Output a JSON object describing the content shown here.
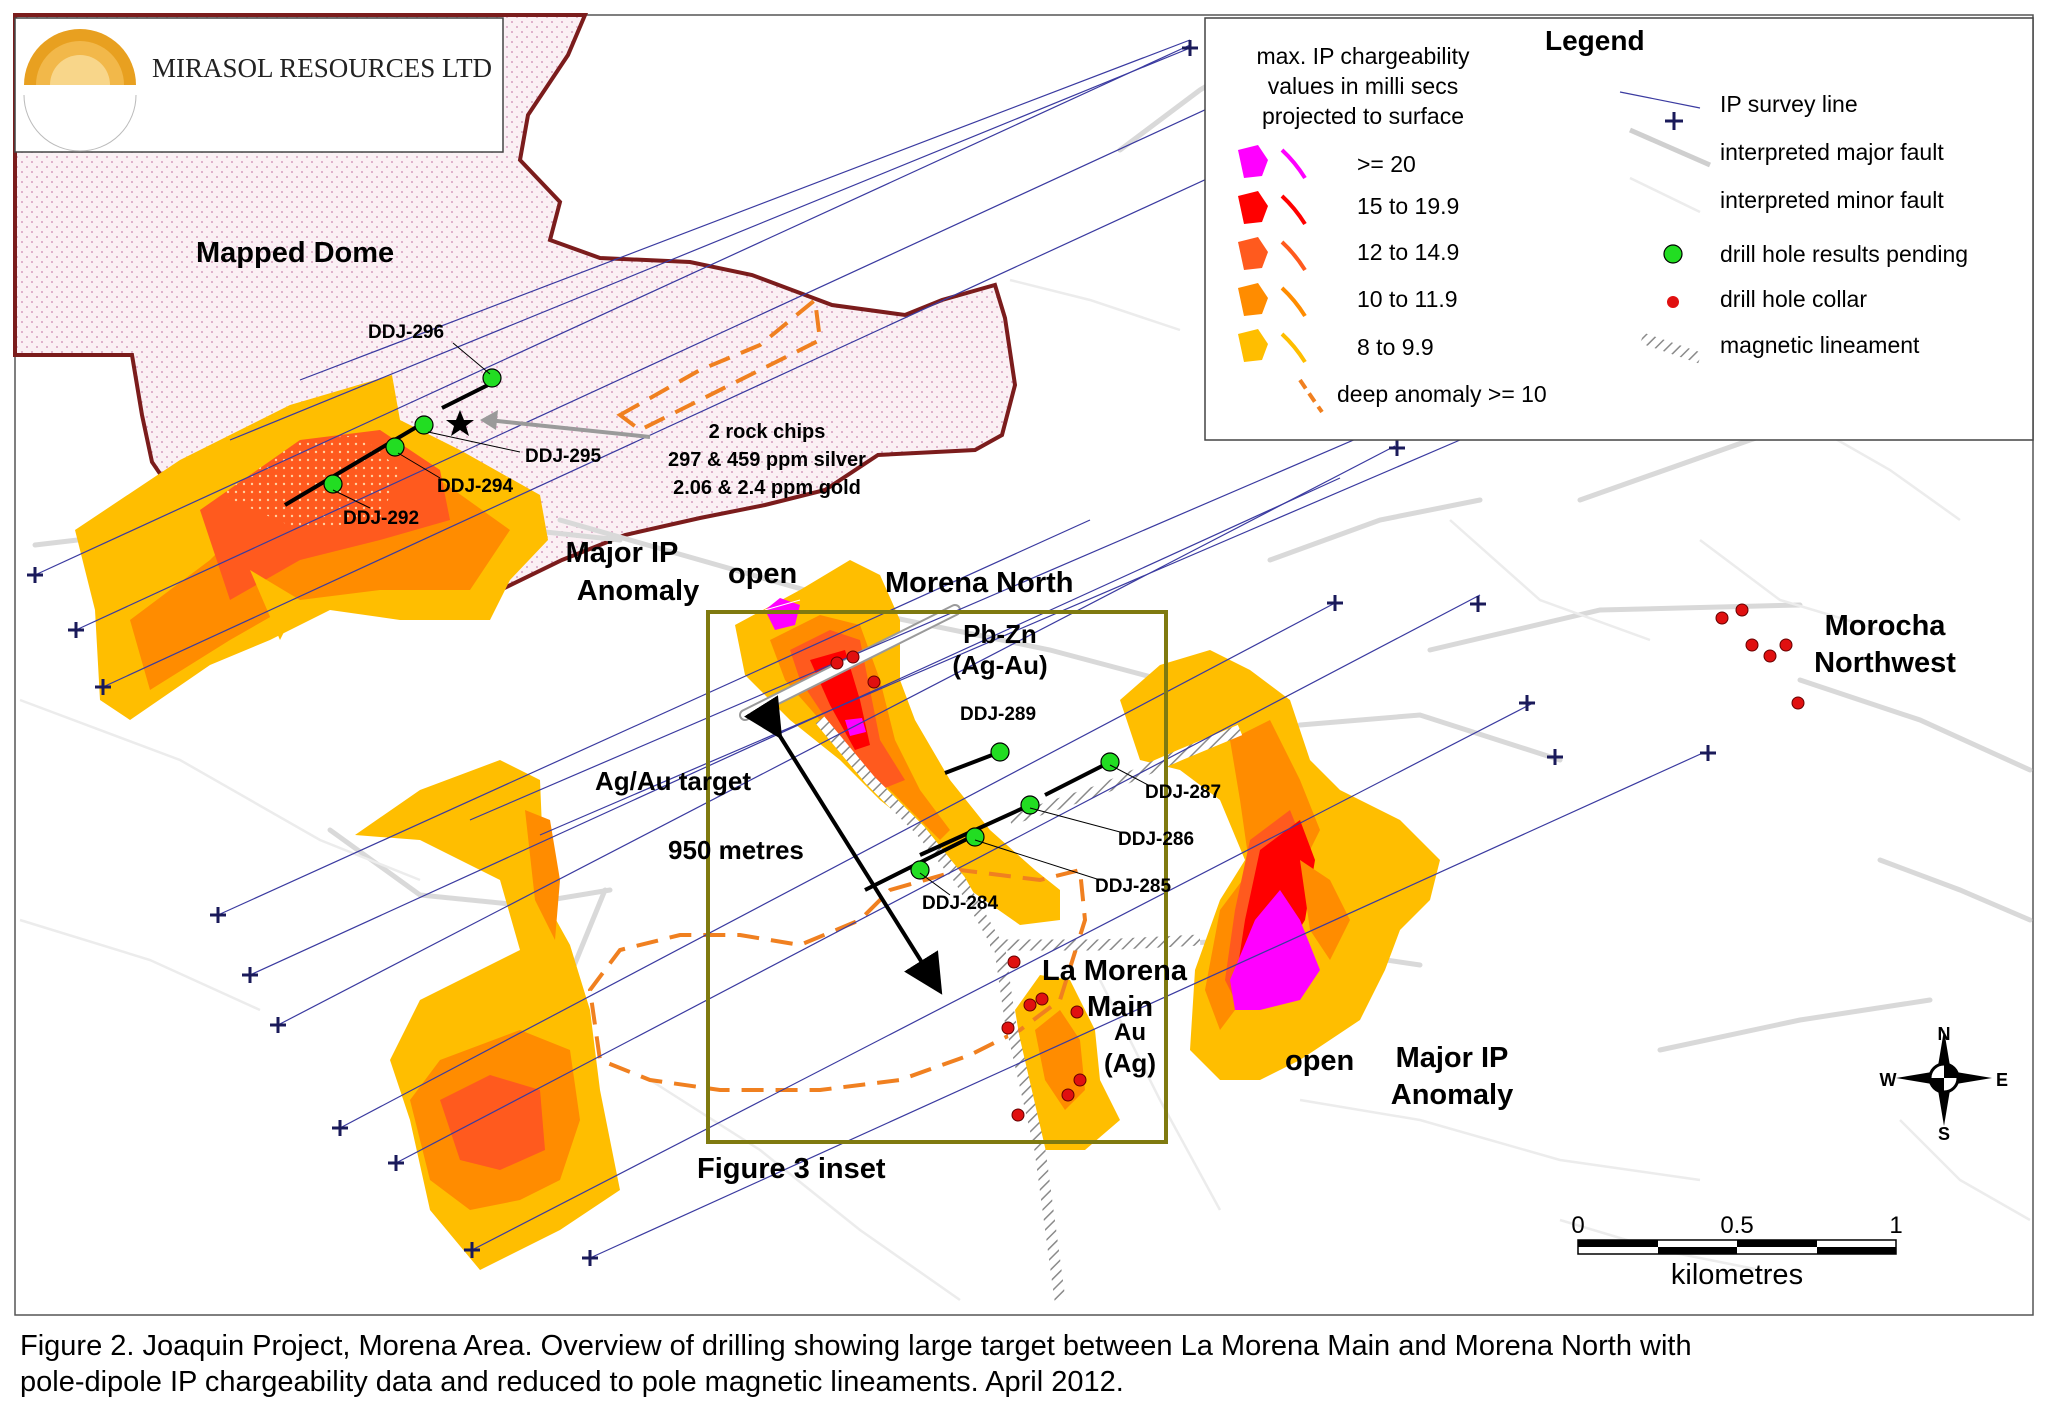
{
  "logo": {
    "company": "MIRASOL RESOURCES LTD"
  },
  "legend": {
    "title": "Legend",
    "chargeability_title": [
      "max. IP chargeability",
      "values in milli secs",
      "projected to surface"
    ],
    "classes": [
      {
        "label": ">= 20",
        "color": "#ff00ff"
      },
      {
        "label": "15 to 19.9",
        "color": "#ff0000"
      },
      {
        "label": "12 to 14.9",
        "color": "#ff5a1e"
      },
      {
        "label": "10 to 11.9",
        "color": "#ff8c00"
      },
      {
        "label": "8 to 9.9",
        "color": "#ffbe00"
      }
    ],
    "deep_anomaly": "deep anomaly >= 10",
    "symbols": {
      "ip_survey_line": "IP survey line",
      "major_fault": "interpreted major fault",
      "minor_fault": "interpreted minor fault",
      "pending": "drill hole results pending",
      "collar": "drill hole collar",
      "magnetic": "magnetic lineament"
    }
  },
  "labels": {
    "mapped_dome": "Mapped Dome",
    "rock_chips": [
      "2 rock chips",
      "297 & 459 ppm silver",
      "2.06 & 2.4 ppm gold"
    ],
    "major_ip_left": [
      "Major IP",
      "Anomaly"
    ],
    "open_left": "open",
    "morena_north": "Morena North",
    "pbzn": [
      "Pb-Zn",
      "(Ag-Au)"
    ],
    "ag_au_target": "Ag/Au target",
    "distance": "950 metres",
    "la_morena": [
      "La Morena",
      "Main"
    ],
    "au_ag": [
      "Au",
      "(Ag)"
    ],
    "open_right": "open",
    "major_ip_right": [
      "Major IP",
      "Anomaly"
    ],
    "morocha": [
      "Morocha",
      "Northwest"
    ],
    "figure3_inset": "Figure 3 inset"
  },
  "drill_holes": [
    "DDJ-296",
    "DDJ-295",
    "DDJ-294",
    "DDJ-292",
    "DDJ-289",
    "DDJ-287",
    "DDJ-286",
    "DDJ-285",
    "DDJ-284"
  ],
  "compass": {
    "n": "N",
    "s": "S",
    "e": "E",
    "w": "W"
  },
  "scale": {
    "ticks": [
      "0",
      "0.5",
      "1"
    ],
    "unit": "kilometres"
  },
  "caption": [
    "Figure 2. Joaquin Project, Morena Area. Overview of drilling showing large target between La Morena Main and Morena North with",
    "pole-dipole IP chargeability data and reduced to pole magnetic lineaments. April 2012."
  ],
  "colors": {
    "dome_outline": "#7b1c1c",
    "dome_label": "#8b1a1a",
    "inset_box": "#7f7a10",
    "pending": "#22dd22",
    "collar": "#e01010",
    "survey_line": "#3a3aa0",
    "deep": "#f08020"
  }
}
